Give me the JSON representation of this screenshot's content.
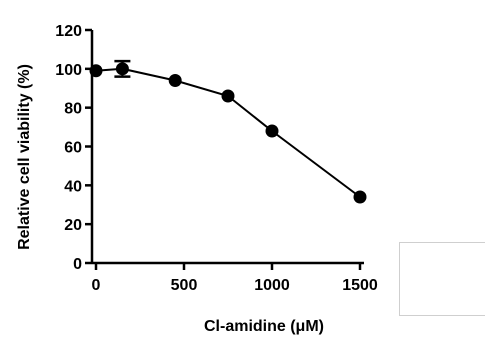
{
  "chart_data": {
    "type": "line",
    "title": "",
    "xlabel": "Cl-amidine (μM)",
    "ylabel": "Relative cell viability (%)",
    "xlim": [
      0,
      1500
    ],
    "ylim": [
      0,
      120
    ],
    "x_ticks": [
      0,
      500,
      1000,
      1500
    ],
    "y_ticks": [
      0,
      20,
      40,
      60,
      80,
      100,
      120
    ],
    "grid": false,
    "series": [
      {
        "x": [
          0,
          150,
          450,
          750,
          1000,
          1500
        ],
        "values": [
          99,
          100,
          94,
          86,
          68,
          34
        ],
        "error": [
          0,
          4,
          0,
          0,
          0,
          0
        ],
        "color": "#000000",
        "marker": "filled-circle"
      }
    ]
  },
  "legend": {
    "visible": true,
    "placement": "bottom-right",
    "entries": []
  }
}
